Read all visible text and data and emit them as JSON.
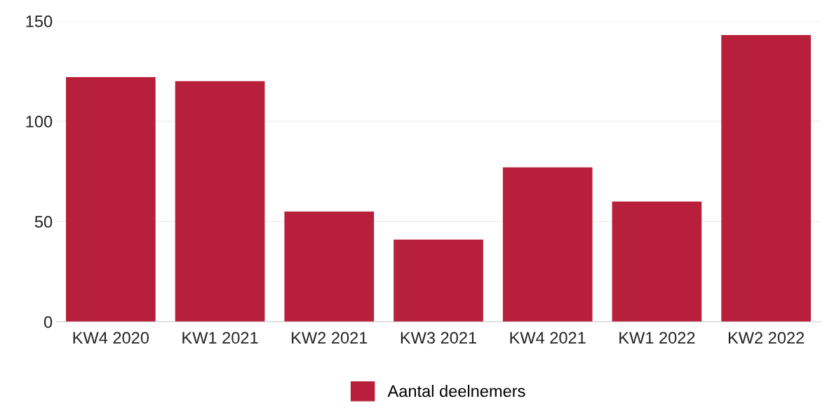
{
  "chart_data": {
    "type": "bar",
    "categories": [
      "KW4 2020",
      "KW1 2021",
      "KW2 2021",
      "KW3 2021",
      "KW4 2021",
      "KW1 2022",
      "KW2 2022"
    ],
    "series": [
      {
        "name": "Aantal deelnemers",
        "color": "#b71f3a",
        "values": [
          122,
          120,
          55,
          41,
          77,
          60,
          143
        ]
      }
    ],
    "ylim": [
      0,
      150
    ],
    "yticks": [
      0,
      50,
      100,
      150
    ],
    "grid": "y",
    "legend": "bottom"
  }
}
